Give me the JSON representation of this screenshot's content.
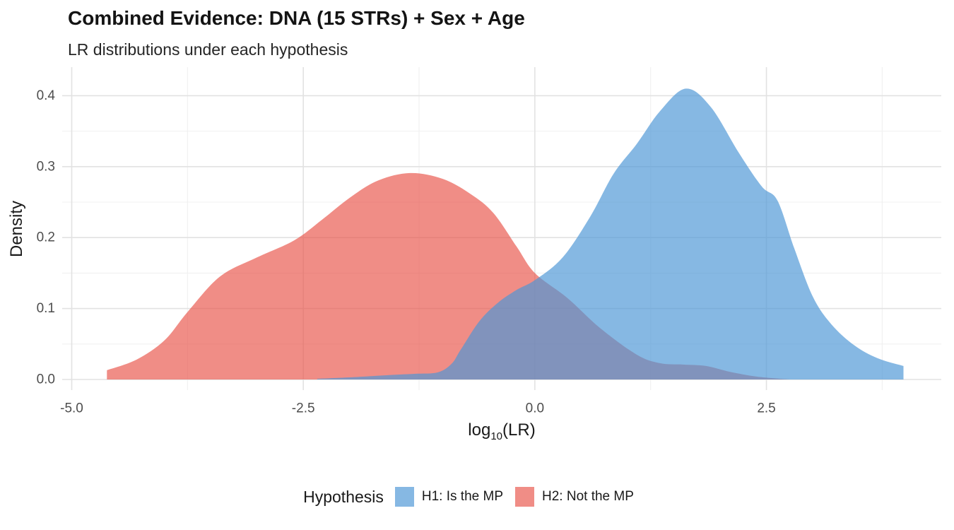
{
  "header": {
    "title": "Combined Evidence: DNA (15 STRs) + Sex + Age",
    "subtitle": "LR distributions under each hypothesis"
  },
  "axes": {
    "x": {
      "label_parts": {
        "base": "log",
        "sub": "10",
        "rest": "(LR)"
      },
      "ticks": [
        "-5.0",
        "-2.5",
        "0.0",
        "2.5"
      ],
      "tick_values": [
        -5,
        -2.5,
        0,
        2.5
      ],
      "minor_values": [
        -3.75,
        -1.25,
        1.25,
        3.75
      ],
      "range": [
        -5.103,
        4.388
      ]
    },
    "y": {
      "label": "Density",
      "ticks": [
        "0.0",
        "0.1",
        "0.2",
        "0.3",
        "0.4"
      ],
      "tick_values": [
        0,
        0.1,
        0.2,
        0.3,
        0.4
      ],
      "minor_values": [
        0.05,
        0.15,
        0.25,
        0.35
      ],
      "range": [
        -0.01494,
        0.44026
      ]
    }
  },
  "legend": {
    "title": "Hypothesis",
    "items": [
      {
        "label": "H1: Is the MP",
        "fill": "rgba(77,150,213,0.68)"
      },
      {
        "label": "H2: Not the MP",
        "fill": "rgba(232,82,72,0.66)"
      }
    ]
  },
  "colors": {
    "h1_fill_on_white": "#86B8E2",
    "h2_fill_on_white": "#F08D86",
    "overlap": "#8193BC",
    "grid_major": "#E2E2E2",
    "grid_minor": "#F0F0F0",
    "tick_text": "#4D4D4D"
  },
  "chart_data": {
    "type": "area",
    "title": "Combined Evidence: DNA (15 STRs) + Sex + Age",
    "subtitle": "LR distributions under each hypothesis",
    "xlabel": "log10(LR)",
    "ylabel": "Density",
    "xlim": [
      -5.1,
      4.39
    ],
    "ylim": [
      0,
      0.44
    ],
    "x_ticks": [
      -5.0,
      -2.5,
      0.0,
      2.5
    ],
    "y_ticks": [
      0.0,
      0.1,
      0.2,
      0.3,
      0.4
    ],
    "grid": "major+minor",
    "legend_position": "bottom",
    "legend_title": "Hypothesis",
    "series": [
      {
        "name": "H1: Is the MP",
        "fill": "rgba(77,150,213,0.68)",
        "peak": {
          "x": 1.63,
          "density": 0.41
        },
        "points": [
          [
            -2.35,
            0.001
          ],
          [
            -2.0,
            0.003
          ],
          [
            -1.6,
            0.006
          ],
          [
            -1.3,
            0.008
          ],
          [
            -1.05,
            0.01
          ],
          [
            -0.9,
            0.022
          ],
          [
            -0.8,
            0.042
          ],
          [
            -0.6,
            0.082
          ],
          [
            -0.4,
            0.108
          ],
          [
            -0.2,
            0.126
          ],
          [
            0.0,
            0.14
          ],
          [
            0.3,
            0.172
          ],
          [
            0.6,
            0.23
          ],
          [
            0.85,
            0.29
          ],
          [
            1.1,
            0.332
          ],
          [
            1.35,
            0.378
          ],
          [
            1.63,
            0.41
          ],
          [
            1.9,
            0.384
          ],
          [
            2.2,
            0.32
          ],
          [
            2.45,
            0.272
          ],
          [
            2.62,
            0.252
          ],
          [
            2.8,
            0.185
          ],
          [
            3.0,
            0.117
          ],
          [
            3.2,
            0.078
          ],
          [
            3.45,
            0.048
          ],
          [
            3.7,
            0.03
          ],
          [
            3.98,
            0.019
          ]
        ]
      },
      {
        "name": "H2: Not the MP",
        "fill": "rgba(232,82,72,0.66)",
        "peak": {
          "x": -1.35,
          "density": 0.291
        },
        "points": [
          [
            -4.62,
            0.013
          ],
          [
            -4.3,
            0.028
          ],
          [
            -4.0,
            0.055
          ],
          [
            -3.75,
            0.095
          ],
          [
            -3.4,
            0.145
          ],
          [
            -3.0,
            0.172
          ],
          [
            -2.6,
            0.196
          ],
          [
            -2.3,
            0.225
          ],
          [
            -2.0,
            0.256
          ],
          [
            -1.7,
            0.28
          ],
          [
            -1.35,
            0.291
          ],
          [
            -1.0,
            0.283
          ],
          [
            -0.7,
            0.262
          ],
          [
            -0.45,
            0.235
          ],
          [
            -0.2,
            0.188
          ],
          [
            0.0,
            0.15
          ],
          [
            0.35,
            0.115
          ],
          [
            0.7,
            0.073
          ],
          [
            1.1,
            0.035
          ],
          [
            1.35,
            0.023
          ],
          [
            1.6,
            0.021
          ],
          [
            1.85,
            0.019
          ],
          [
            2.1,
            0.011
          ],
          [
            2.4,
            0.004
          ],
          [
            2.75,
            0.0
          ]
        ]
      }
    ]
  }
}
